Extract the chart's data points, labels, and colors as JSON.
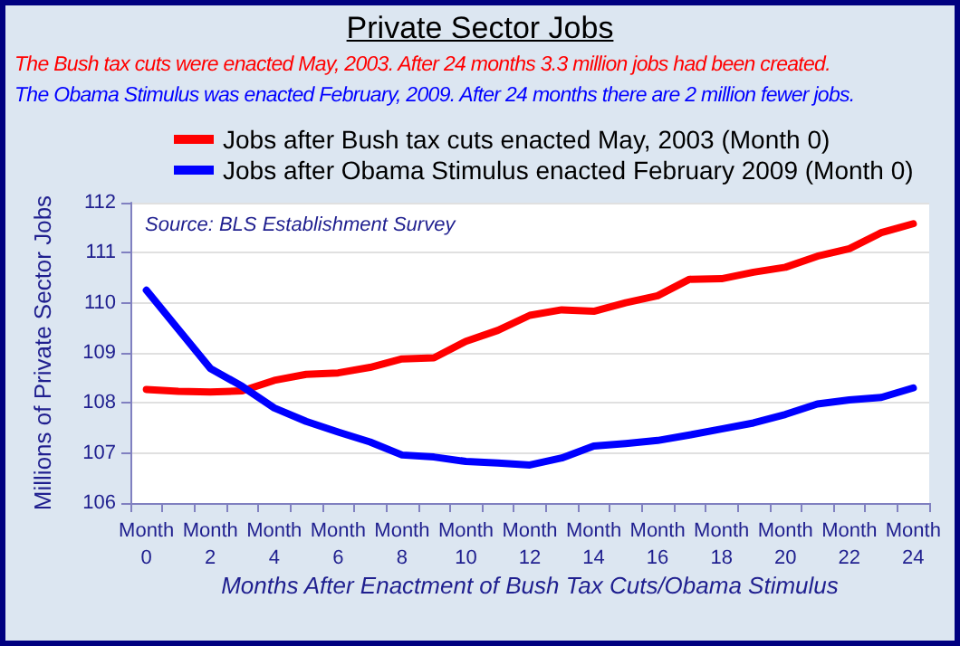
{
  "chart_data": {
    "type": "line",
    "title": "Private Sector Jobs",
    "annotations": [
      "The Bush tax cuts were enacted May, 2003.  After 24 months 3.3 million jobs had been created.",
      "The Obama Stimulus was enacted February, 2009.  After 24 months there are 2 million fewer jobs.",
      "Source: BLS Establishment Survey"
    ],
    "xlabel": "Months After Enactment of Bush Tax Cuts/Obama Stimulus",
    "ylabel": "Millions of Private Sector Jobs",
    "categories": [
      "Month 0",
      null,
      "Month 2",
      null,
      "Month 4",
      null,
      "Month 6",
      null,
      "Month 8",
      null,
      "Month 10",
      null,
      "Month 12",
      null,
      "Month 14",
      null,
      "Month 16",
      null,
      "Month 18",
      null,
      "Month 20",
      null,
      "Month 22",
      null,
      "Month 24"
    ],
    "series": [
      {
        "name": "Jobs after Bush tax cuts enacted May, 2003 (Month 0)",
        "color": "#ff0000",
        "values": [
          108.27,
          108.23,
          108.22,
          108.24,
          108.45,
          108.57,
          108.6,
          108.71,
          108.88,
          108.9,
          109.23,
          109.45,
          109.75,
          109.86,
          109.83,
          110.0,
          110.14,
          110.47,
          110.48,
          110.61,
          110.71,
          110.93,
          111.08,
          111.4,
          111.58
        ]
      },
      {
        "name": "Jobs after Obama Stimulus enacted February 2009 (Month 0)",
        "color": "#0000ff",
        "values": [
          110.25,
          109.47,
          108.69,
          108.33,
          107.9,
          107.63,
          107.42,
          107.22,
          106.96,
          106.92,
          106.83,
          106.8,
          106.76,
          106.9,
          107.14,
          107.19,
          107.25,
          107.36,
          107.48,
          107.6,
          107.77,
          107.98,
          108.06,
          108.11,
          108.3
        ]
      }
    ],
    "ylim": [
      106,
      112
    ],
    "yticks": [
      106,
      107,
      108,
      109,
      110,
      111,
      112
    ],
    "grid": "y",
    "legend": "top",
    "marker": "none",
    "line_style": "solid"
  }
}
